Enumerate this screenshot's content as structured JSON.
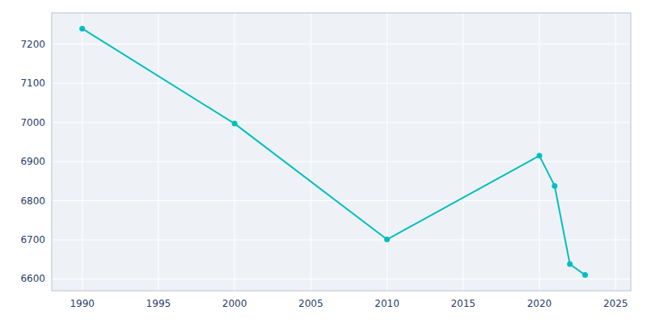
{
  "chart_data": {
    "type": "line",
    "x": [
      1990,
      2000,
      2010,
      2020,
      2021,
      2022,
      2023
    ],
    "values": [
      7240,
      6997,
      6701,
      6915,
      6838,
      6638,
      6610
    ],
    "color": "#00BFBF",
    "marker": "circle",
    "xlim": [
      1988,
      2026
    ],
    "ylim": [
      6570,
      7280
    ],
    "xticks": [
      1990,
      1995,
      2000,
      2005,
      2010,
      2015,
      2020,
      2025
    ],
    "yticks": [
      6600,
      6700,
      6800,
      6900,
      7000,
      7100,
      7200
    ],
    "grid": true
  }
}
